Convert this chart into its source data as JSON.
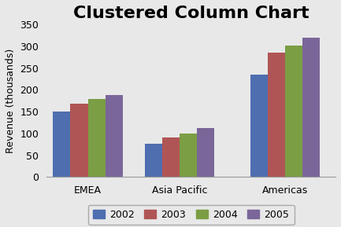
{
  "title": "Clustered Column Chart",
  "categories": [
    "EMEA",
    "Asia Pacific",
    "Americas"
  ],
  "years": [
    "2002",
    "2003",
    "2004",
    "2005"
  ],
  "values": {
    "2002": [
      150,
      77,
      235
    ],
    "2003": [
      168,
      90,
      285
    ],
    "2004": [
      179,
      100,
      302
    ],
    "2005": [
      188,
      112,
      320
    ]
  },
  "colors": {
    "2002": "#4E6EB0",
    "2003": "#B05555",
    "2004": "#7B9E44",
    "2005": "#7B6699"
  },
  "ylabel": "Revenue (thousands)",
  "ylim": [
    0,
    350
  ],
  "yticks": [
    0,
    50,
    100,
    150,
    200,
    250,
    300,
    350
  ],
  "background_color": "#E8E8E8",
  "plot_background": "#E8E8E8",
  "title_fontsize": 16,
  "axis_fontsize": 9,
  "legend_fontsize": 9,
  "bar_width": 0.19,
  "group_positions": [
    0.45,
    1.45,
    2.6
  ]
}
